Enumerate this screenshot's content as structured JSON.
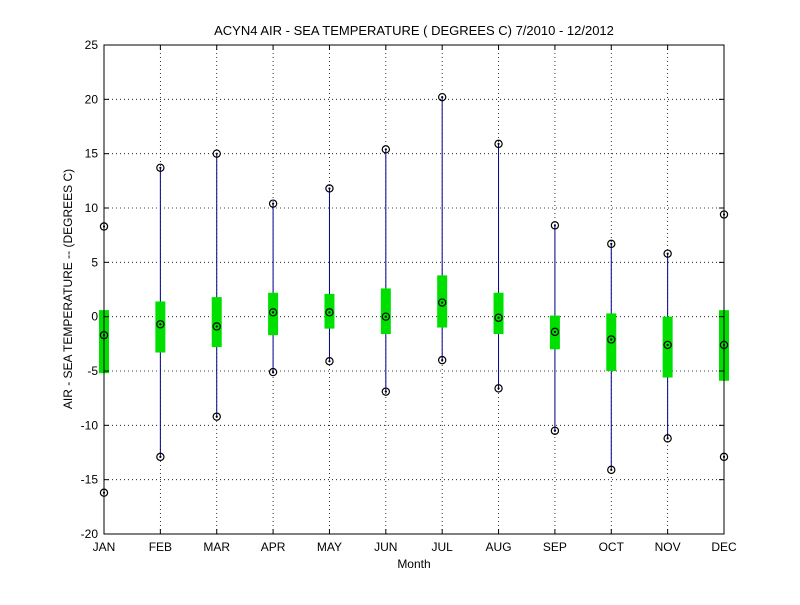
{
  "chart_data": {
    "type": "box",
    "title": "ACYN4  AIR - SEA TEMPERATURE ( DEGREES C) 7/2010 - 12/2012",
    "xlabel": "Month",
    "ylabel": "AIR - SEA TEMPERATURE -- (DEGREES C)",
    "ylim": [
      -20,
      25
    ],
    "yticks": [
      -20,
      -15,
      -10,
      -5,
      0,
      5,
      10,
      15,
      20,
      25
    ],
    "grid": true,
    "categories": [
      "JAN",
      "FEB",
      "MAR",
      "APR",
      "MAY",
      "JUN",
      "JUL",
      "AUG",
      "SEP",
      "OCT",
      "NOV",
      "DEC"
    ],
    "max": [
      8.3,
      13.7,
      15.0,
      10.4,
      11.8,
      15.4,
      20.2,
      15.9,
      8.4,
      6.7,
      5.8,
      9.4
    ],
    "q3": [
      0.6,
      1.4,
      1.8,
      2.2,
      2.1,
      2.6,
      3.8,
      2.2,
      0.1,
      0.3,
      0.0,
      0.6
    ],
    "median": [
      -1.7,
      -0.7,
      -0.9,
      0.4,
      0.4,
      0.0,
      1.3,
      -0.1,
      -1.4,
      -2.1,
      -2.6,
      -2.6
    ],
    "q1": [
      -5.2,
      -3.3,
      -2.8,
      -1.7,
      -1.1,
      -1.6,
      -1.0,
      -1.6,
      -3.0,
      -5.0,
      -5.6,
      -5.9
    ],
    "min": [
      -16.2,
      -12.9,
      -9.2,
      -5.1,
      -4.1,
      -6.9,
      -4.0,
      -6.6,
      -10.5,
      -14.1,
      -11.2,
      -12.9
    ],
    "colors": {
      "whisker": "#00008b",
      "box": "#00e000",
      "marker": "#000000",
      "grid": "#000000",
      "axis": "#000000"
    }
  }
}
